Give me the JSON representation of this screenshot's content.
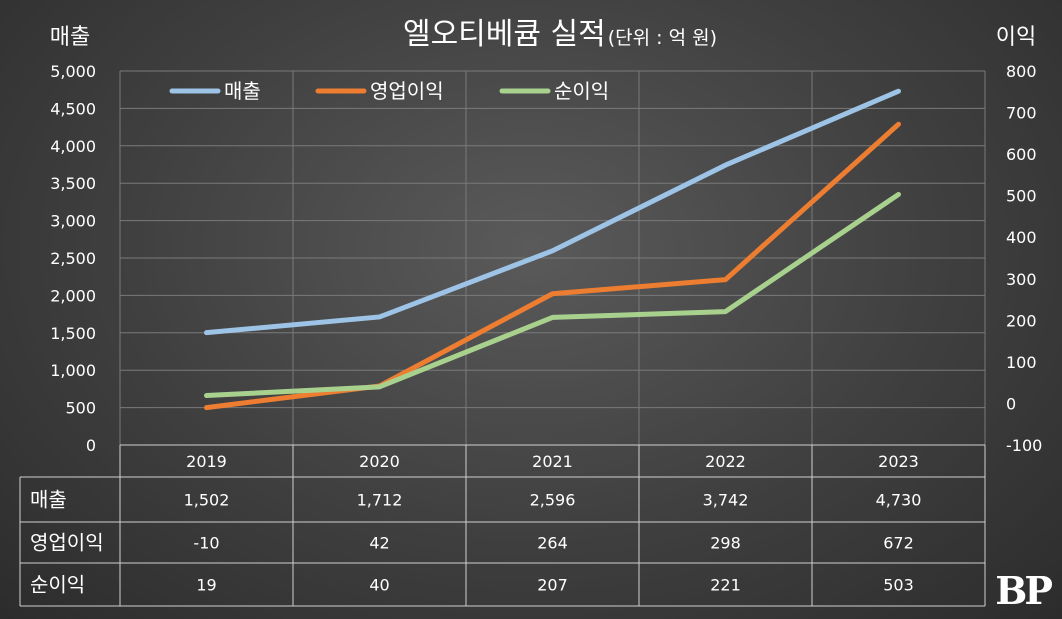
{
  "chart_data": {
    "type": "line",
    "title": "엘오티베큠 실적",
    "unit": "(단위 : 억 원)",
    "y_left_label": "매출",
    "y_right_label": "이익",
    "categories": [
      "2019",
      "2020",
      "2021",
      "2022",
      "2023"
    ],
    "y_left_range": [
      0,
      5000
    ],
    "y_left_ticks": [
      "5,000",
      "4,500",
      "4,000",
      "3,500",
      "3,000",
      "2,500",
      "2,000",
      "1,500",
      "1,000",
      "500",
      "0"
    ],
    "y_right_range": [
      -100,
      800
    ],
    "y_right_ticks": [
      "800",
      "700",
      "600",
      "500",
      "400",
      "300",
      "200",
      "100",
      "0",
      "-100"
    ],
    "series": [
      {
        "name": "매출",
        "axis": "left",
        "color": "#9dc3e6",
        "values": [
          1502,
          1712,
          2596,
          3742,
          4730
        ],
        "labels": [
          "1,502",
          "1,712",
          "2,596",
          "3,742",
          "4,730"
        ]
      },
      {
        "name": "영업이익",
        "axis": "right",
        "color": "#ed7d31",
        "values": [
          -10,
          42,
          264,
          298,
          672
        ],
        "labels": [
          "-10",
          "42",
          "264",
          "298",
          "672"
        ]
      },
      {
        "name": "순이익",
        "axis": "right",
        "color": "#a9d18e",
        "values": [
          19,
          40,
          207,
          221,
          503
        ],
        "labels": [
          "19",
          "40",
          "207",
          "221",
          "503"
        ]
      }
    ],
    "legend_position": "top-left",
    "grid": true
  },
  "logo_text": "BP"
}
